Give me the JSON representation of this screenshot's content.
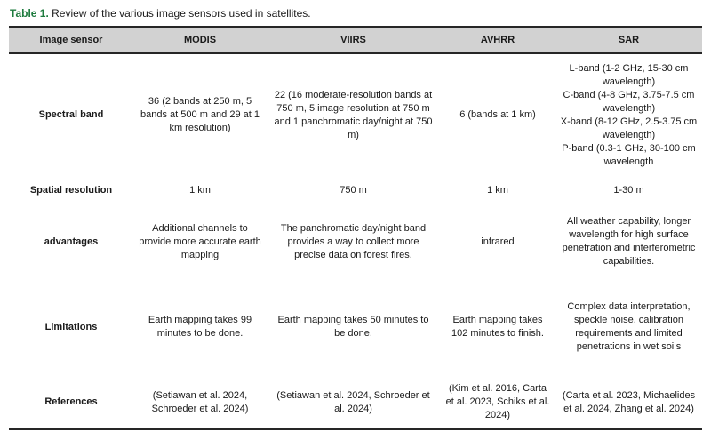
{
  "caption": {
    "label": "Table 1.",
    "text": " Review of the various image sensors used in satellites."
  },
  "table": {
    "columns": [
      "Image sensor",
      "MODIS",
      "VIIRS",
      "AVHRR",
      "SAR"
    ],
    "rows": [
      {
        "label": "Spectral band",
        "cells": [
          "36 (2 bands at 250 m, 5 bands at 500 m and 29 at 1 km resolution)",
          "22 (16 moderate-resolution bands at 750 m, 5 image resolution at 750 m and 1 panchromatic day/night at 750 m)",
          "6 (bands at 1 km)",
          "L-band (1-2 GHz, 15-30 cm wavelength)\nC-band (4-8 GHz, 3.75-7.5 cm wavelength)\nX-band (8-12 GHz, 2.5-3.75 cm wavelength)\nP-band (0.3-1 GHz, 30-100 cm wavelength"
        ]
      },
      {
        "label": "Spatial resolution",
        "cells": [
          "1 km",
          "750 m",
          "1 km",
          "1-30 m"
        ]
      },
      {
        "label": "advantages",
        "cells": [
          "Additional channels to provide more accurate earth mapping",
          "The panchromatic day/night band provides a way to collect more precise data on forest fires.",
          "infrared",
          "All weather capability, longer wavelength for high surface penetration and interferometric capabilities."
        ]
      },
      {
        "label": "Limitations",
        "cells": [
          "Earth mapping takes 99 minutes to be done.",
          "Earth mapping takes 50 minutes to be done.",
          "Earth mapping takes 102 minutes to finish.",
          "Complex data interpretation, speckle noise, calibration requirements and limited penetrations in wet soils"
        ]
      },
      {
        "label": "References",
        "cells": [
          "(Setiawan et al. 2024, Schroeder et al. 2024)",
          "(Setiawan et al. 2024, Schroeder et al. 2024)",
          "(Kim et al. 2016, Carta et al. 2023, Schiks et al. 2024)",
          "(Carta et al. 2023, Michaelides et al. 2024, Zhang et al. 2024)"
        ]
      }
    ]
  },
  "colors": {
    "accent_green": "#1e7b3e",
    "header_bg": "#d2d2d2",
    "border": "#262626",
    "text": "#1a1a1a"
  }
}
